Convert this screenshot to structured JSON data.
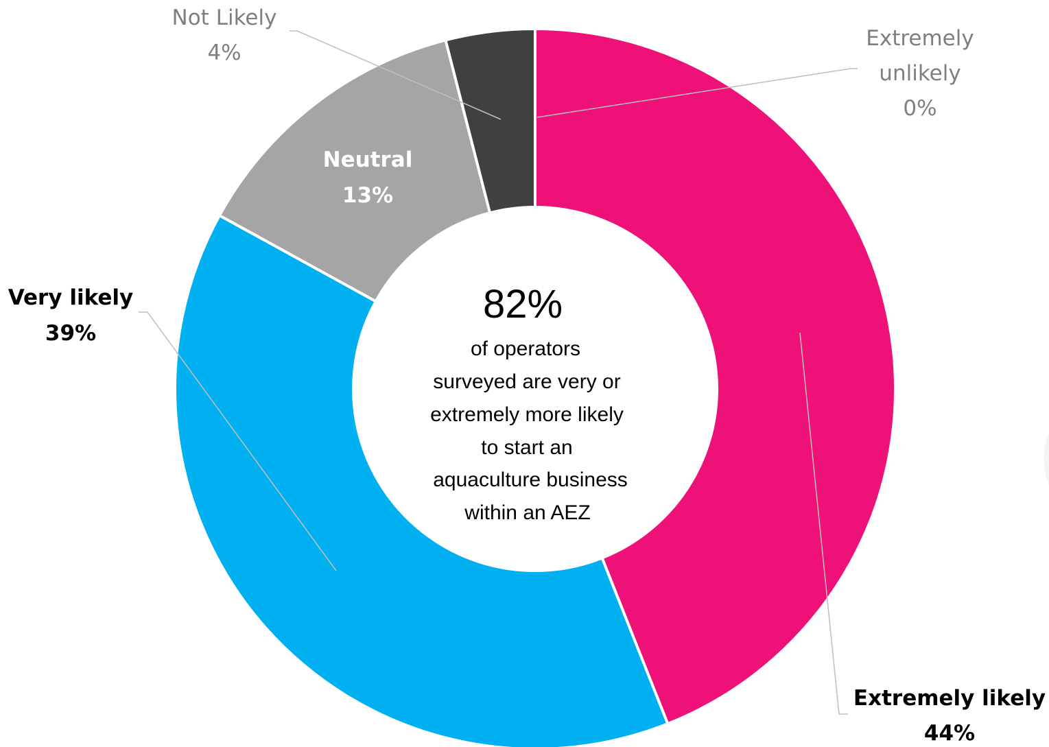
{
  "chart_data": {
    "type": "pie",
    "donut": true,
    "slices": [
      {
        "label": "Extremely unlikely",
        "label_lines": [
          "Extremely",
          "unlikely"
        ],
        "value": 0,
        "value_label": "0%",
        "color": "#7f7f7f"
      },
      {
        "label": "Extremely likely",
        "label_lines": [
          "Extremely likely"
        ],
        "value": 44,
        "value_label": "44%",
        "color": "#ee1177"
      },
      {
        "label": "Very likely",
        "label_lines": [
          "Very likely"
        ],
        "value": 39,
        "value_label": "39%",
        "color": "#00b0f0"
      },
      {
        "label": "Neutral",
        "label_lines": [
          "Neutral"
        ],
        "value": 13,
        "value_label": "13%",
        "color": "#a5a5a5"
      },
      {
        "label": "Not Likely",
        "label_lines": [
          "Not Likely"
        ],
        "value": 4,
        "value_label": "4%",
        "color": "#404040"
      }
    ],
    "center": {
      "headline": "82%",
      "text_lines": [
        "of operators",
        "surveyed are very or",
        "extremely more likely",
        "to start an",
        "aquaculture business",
        "within an AEZ"
      ]
    },
    "watermark": "8"
  }
}
